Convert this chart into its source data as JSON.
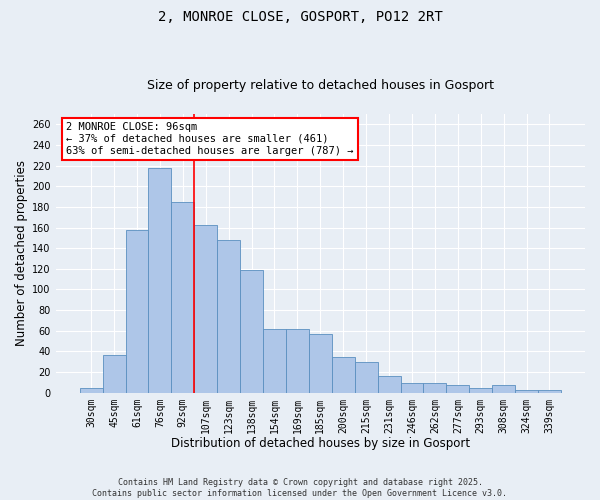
{
  "title_line1": "2, MONROE CLOSE, GOSPORT, PO12 2RT",
  "title_line2": "Size of property relative to detached houses in Gosport",
  "xlabel": "Distribution of detached houses by size in Gosport",
  "ylabel": "Number of detached properties",
  "categories": [
    "30sqm",
    "45sqm",
    "61sqm",
    "76sqm",
    "92sqm",
    "107sqm",
    "123sqm",
    "138sqm",
    "154sqm",
    "169sqm",
    "185sqm",
    "200sqm",
    "215sqm",
    "231sqm",
    "246sqm",
    "262sqm",
    "277sqm",
    "293sqm",
    "308sqm",
    "324sqm",
    "339sqm"
  ],
  "bar_values": [
    5,
    37,
    158,
    218,
    185,
    162,
    148,
    119,
    62,
    62,
    57,
    35,
    30,
    16,
    9,
    9,
    7,
    5,
    7,
    3,
    3
  ],
  "bar_color": "#aec6e8",
  "bar_edge_color": "#5a8fc0",
  "vline_x": 4.5,
  "vline_color": "red",
  "annotation_text": "2 MONROE CLOSE: 96sqm\n← 37% of detached houses are smaller (461)\n63% of semi-detached houses are larger (787) →",
  "annotation_box_color": "white",
  "annotation_box_edge_color": "red",
  "ylim": [
    0,
    270
  ],
  "yticks": [
    0,
    20,
    40,
    60,
    80,
    100,
    120,
    140,
    160,
    180,
    200,
    220,
    240,
    260
  ],
  "background_color": "#e8eef5",
  "footer_text": "Contains HM Land Registry data © Crown copyright and database right 2025.\nContains public sector information licensed under the Open Government Licence v3.0.",
  "title_fontsize": 10,
  "subtitle_fontsize": 9,
  "axis_label_fontsize": 8.5,
  "tick_fontsize": 7,
  "annotation_fontsize": 7.5,
  "footer_fontsize": 6,
  "grid_color": "white",
  "grid_linewidth": 0.8
}
